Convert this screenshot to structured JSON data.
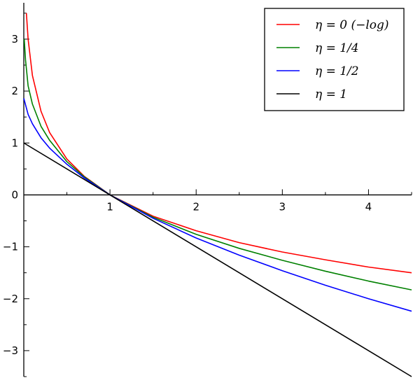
{
  "chart_data": {
    "type": "line",
    "xlim": [
      0,
      4.5
    ],
    "ylim": [
      -3.5,
      3.7
    ],
    "grid": false,
    "legend_position": "top-right",
    "x_ticks": [
      {
        "value": 1,
        "label": "1"
      },
      {
        "value": 2,
        "label": "2"
      },
      {
        "value": 3,
        "label": "3"
      },
      {
        "value": 4,
        "label": "4"
      }
    ],
    "y_ticks": [
      {
        "value": 3,
        "label": "3"
      },
      {
        "value": 2,
        "label": "2"
      },
      {
        "value": 1,
        "label": "1"
      },
      {
        "value": 0,
        "label": "0"
      },
      {
        "value": -1,
        "label": "−1"
      },
      {
        "value": -2,
        "label": "−2"
      },
      {
        "value": -3,
        "label": "−3"
      }
    ],
    "series": [
      {
        "name": "η = 0 (−log)",
        "color": "#ff0000",
        "x": [
          0.03,
          0.05,
          0.1,
          0.2,
          0.3,
          0.5,
          0.7,
          1.0,
          1.5,
          2.0,
          2.5,
          3.0,
          3.5,
          4.0,
          4.5
        ],
        "y": [
          3.5,
          3.0,
          2.3,
          1.61,
          1.2,
          0.69,
          0.36,
          0.0,
          -0.41,
          -0.69,
          -0.92,
          -1.1,
          -1.25,
          -1.39,
          -1.5
        ]
      },
      {
        "name": "η = 1/4",
        "color": "#008000",
        "x": [
          0.005,
          0.02,
          0.05,
          0.1,
          0.2,
          0.3,
          0.5,
          0.7,
          1.0,
          1.5,
          2.0,
          2.5,
          3.0,
          3.5,
          4.0,
          4.5
        ],
        "y": [
          3.0,
          2.6,
          2.1,
          1.75,
          1.32,
          1.05,
          0.64,
          0.35,
          0.0,
          -0.43,
          -0.76,
          -1.03,
          -1.26,
          -1.47,
          -1.66,
          -1.83
        ]
      },
      {
        "name": "η = 1/2",
        "color": "#0000ff",
        "x": [
          0.0,
          0.05,
          0.1,
          0.2,
          0.3,
          0.5,
          0.7,
          1.0,
          1.5,
          2.0,
          2.5,
          3.0,
          3.5,
          4.0,
          4.5
        ],
        "y": [
          1.86,
          1.55,
          1.37,
          1.1,
          0.9,
          0.59,
          0.33,
          0.0,
          -0.45,
          -0.83,
          -1.16,
          -1.46,
          -1.74,
          -2.0,
          -2.24
        ]
      },
      {
        "name": "η = 1",
        "color": "#000000",
        "x": [
          0.0,
          4.5
        ],
        "y": [
          1.0,
          -3.5
        ]
      }
    ]
  }
}
